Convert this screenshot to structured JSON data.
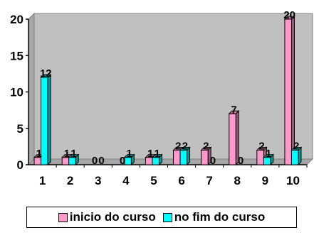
{
  "chart_data": {
    "type": "bar",
    "categories": [
      "1",
      "2",
      "3",
      "4",
      "5",
      "6",
      "7",
      "8",
      "9",
      "10"
    ],
    "series": [
      {
        "name": "inicio do curso",
        "values": [
          1,
          1,
          0,
          0,
          1,
          2,
          2,
          7,
          2,
          20
        ],
        "color": "#FF99CC"
      },
      {
        "name": "no fim do curso",
        "values": [
          12,
          1,
          0,
          1,
          1,
          2,
          0,
          0,
          1,
          2
        ],
        "color": "#00FFFF"
      }
    ],
    "y_ticks": [
      "0",
      "5",
      "10",
      "15",
      "20"
    ],
    "ylim": [
      0,
      20
    ],
    "grid": false,
    "legend_position": "bottom",
    "plot_background": "#C0C0C0"
  }
}
